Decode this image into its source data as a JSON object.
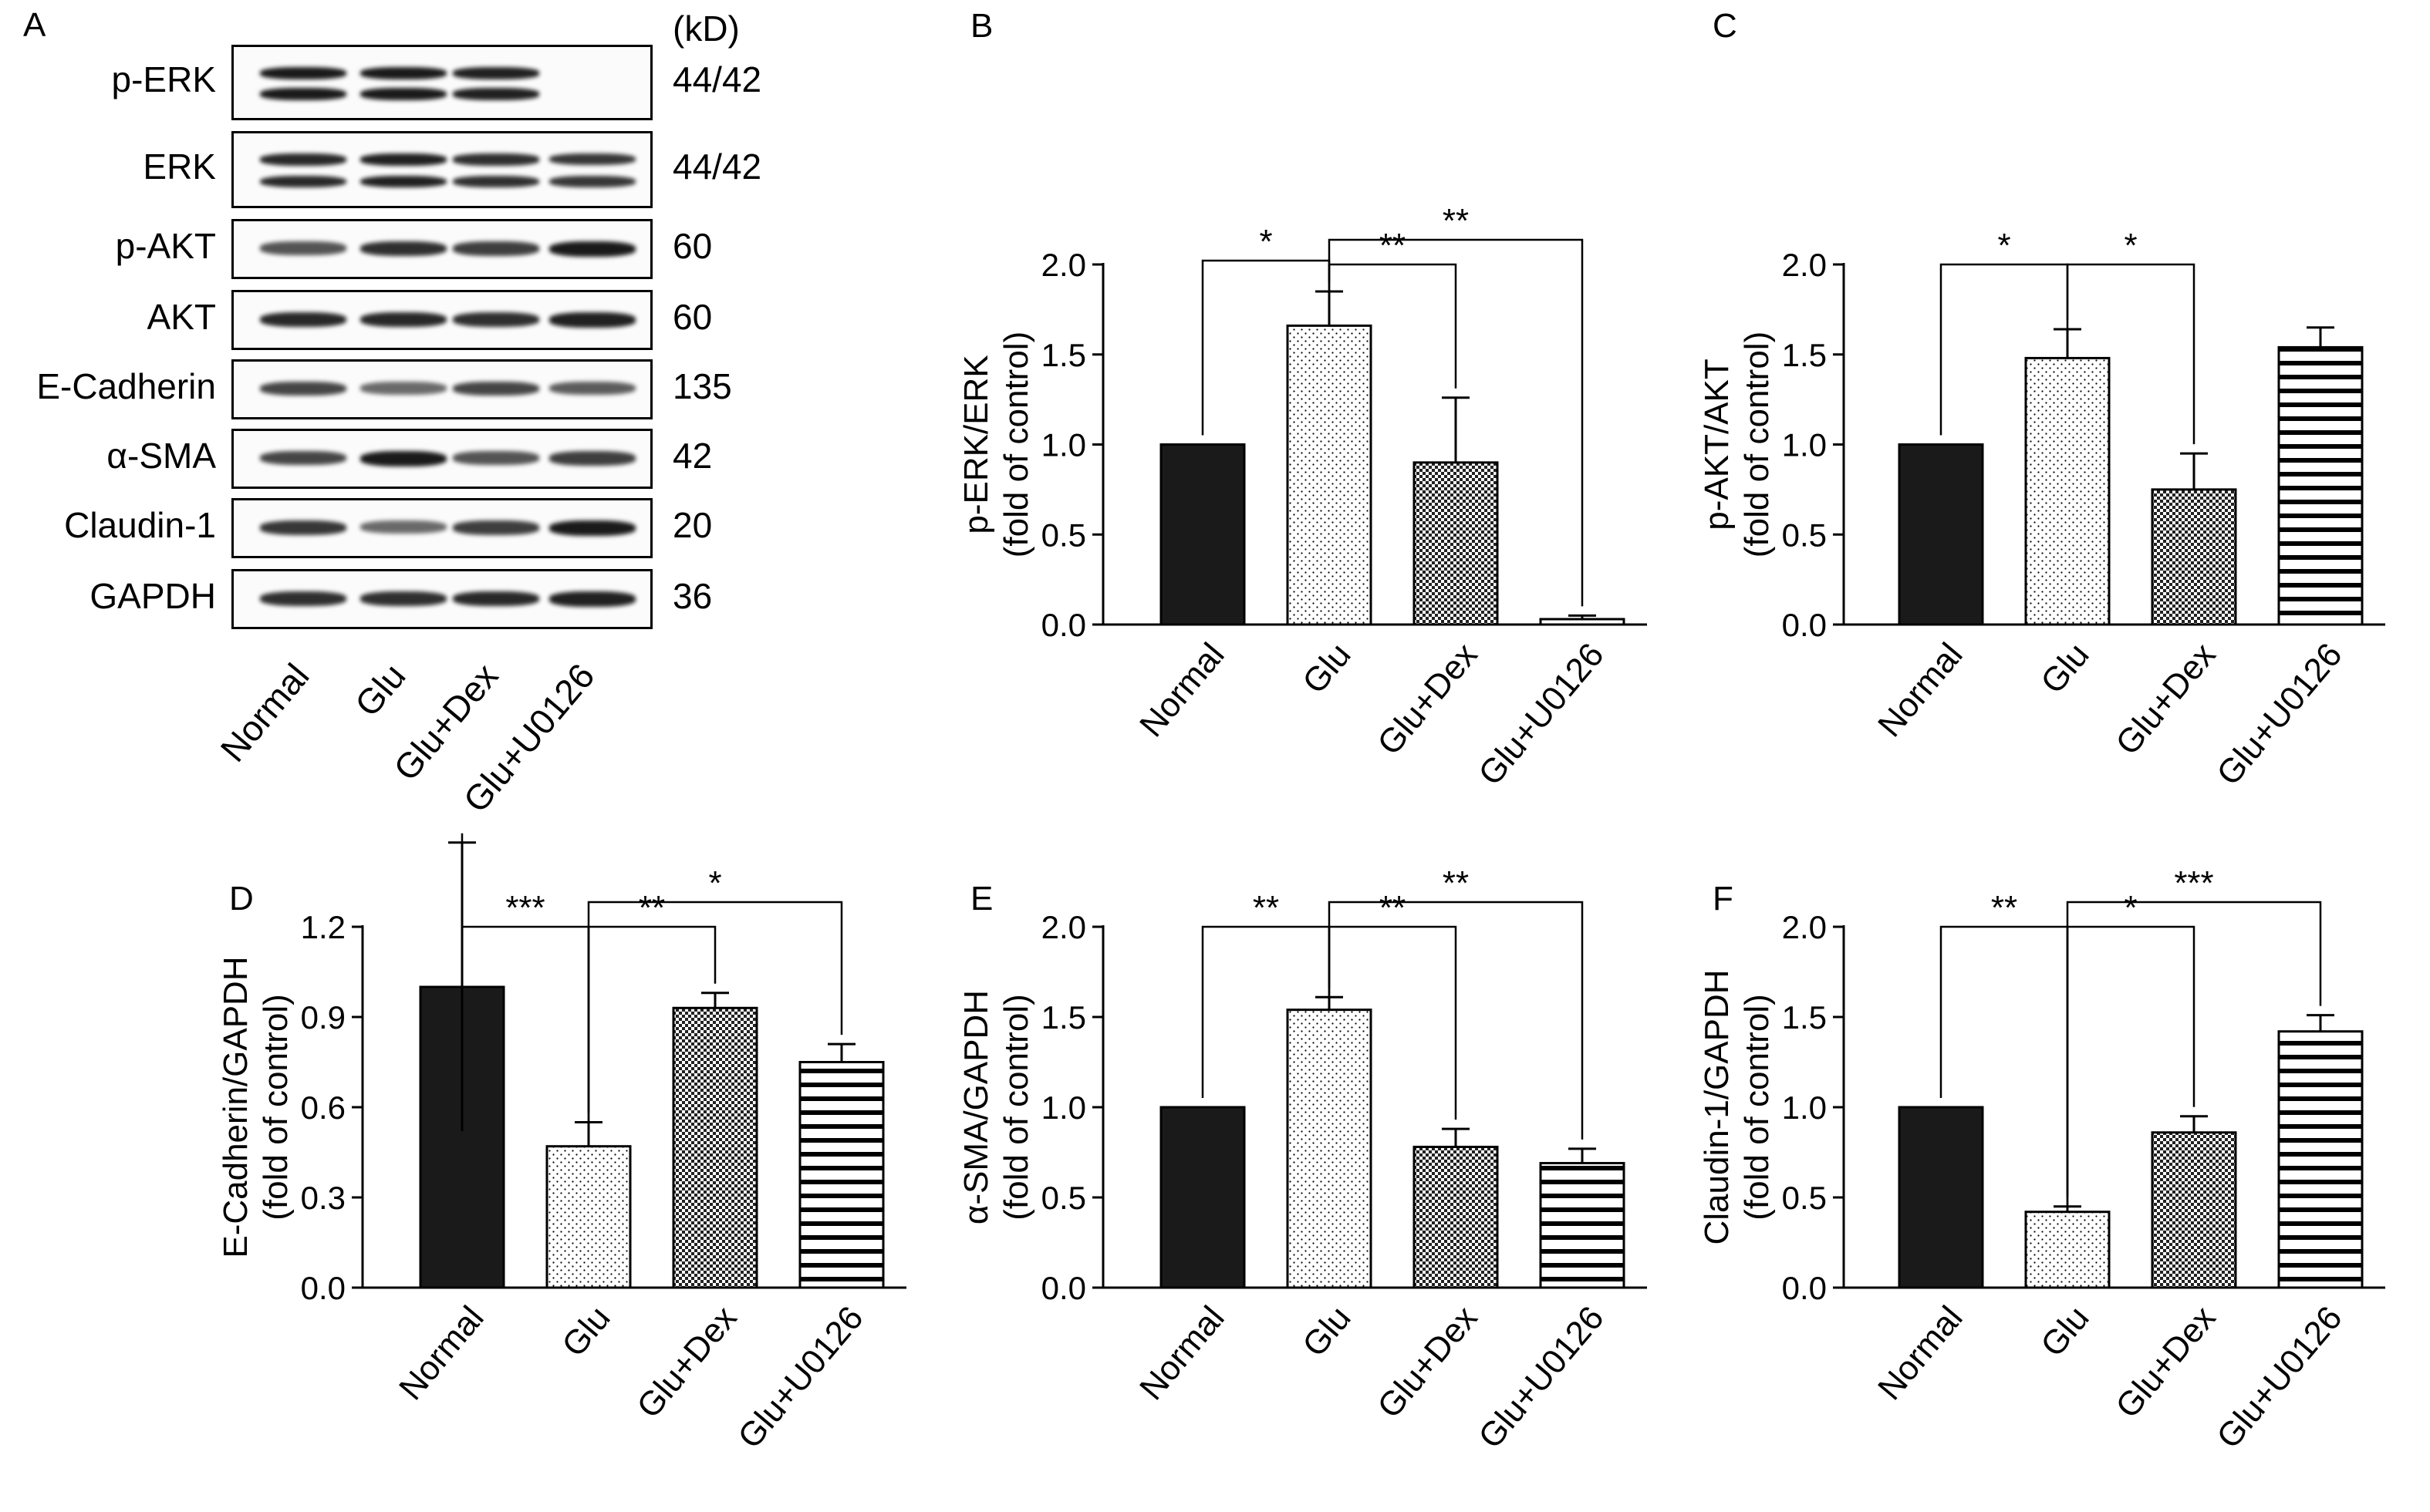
{
  "western_blot": {
    "panel_letter": "A",
    "kd_header": "(kD)",
    "lanes": [
      "Normal",
      "Glu",
      "Glu+Dex",
      "Glu+U0126"
    ],
    "rows": [
      {
        "label": "p-ERK",
        "kd": "44/42"
      },
      {
        "label": "ERK",
        "kd": "44/42"
      },
      {
        "label": "p-AKT",
        "kd": "60"
      },
      {
        "label": "AKT",
        "kd": "60"
      },
      {
        "label": "E-Cadherin",
        "kd": "135"
      },
      {
        "label": "α-SMA",
        "kd": "42"
      },
      {
        "label": "Claudin-1",
        "kd": "20"
      },
      {
        "label": "GAPDH",
        "kd": "36"
      }
    ]
  },
  "chart_data": [
    {
      "panel": "B",
      "type": "bar",
      "categories": [
        "Normal",
        "Glu",
        "Glu+Dex",
        "Glu+U0126"
      ],
      "values": [
        1.0,
        1.66,
        0.9,
        0.03
      ],
      "errors": [
        0,
        0.19,
        0.36,
        0.02
      ],
      "ylabel": [
        "p-ERK/ERK",
        "(fold of control)"
      ],
      "ylim": [
        0,
        2.0
      ],
      "yticks": [
        "0.0",
        "0.5",
        "1.0",
        "1.5",
        "2.0"
      ],
      "significance": [
        {
          "from": 0,
          "to": 1,
          "label": "*"
        },
        {
          "from": 1,
          "to": 2,
          "label": "**"
        },
        {
          "from": 1,
          "to": 3,
          "label": "**"
        }
      ]
    },
    {
      "panel": "C",
      "type": "bar",
      "categories": [
        "Normal",
        "Glu",
        "Glu+Dex",
        "Glu+U0126"
      ],
      "values": [
        1.0,
        1.48,
        0.75,
        1.54
      ],
      "errors": [
        0,
        0.16,
        0.2,
        0.11
      ],
      "ylabel": [
        "p-AKT/AKT",
        "(fold of control)"
      ],
      "ylim": [
        0,
        2.0
      ],
      "yticks": [
        "0.0",
        "0.5",
        "1.0",
        "1.5",
        "2.0"
      ],
      "significance": [
        {
          "from": 0,
          "to": 1,
          "label": "*"
        },
        {
          "from": 1,
          "to": 2,
          "label": "*"
        }
      ]
    },
    {
      "panel": "D",
      "type": "bar",
      "categories": [
        "Normal",
        "Glu",
        "Glu+Dex",
        "Glu+U0126"
      ],
      "values": [
        1.0,
        0.47,
        0.93,
        0.75
      ],
      "errors": [
        0.48,
        0.08,
        0.05,
        0.06
      ],
      "ylabel": [
        "E-Cadherin/GAPDH",
        "(fold of control)"
      ],
      "ylim": [
        0,
        1.2
      ],
      "yticks": [
        "0.0",
        "0.3",
        "0.6",
        "0.9",
        "1.2"
      ],
      "significance": [
        {
          "from": 0,
          "to": 1,
          "label": "***"
        },
        {
          "from": 1,
          "to": 2,
          "label": "**"
        },
        {
          "from": 1,
          "to": 3,
          "label": "*"
        }
      ]
    },
    {
      "panel": "E",
      "type": "bar",
      "categories": [
        "Normal",
        "Glu",
        "Glu+Dex",
        "Glu+U0126"
      ],
      "values": [
        1.0,
        1.54,
        0.78,
        0.69
      ],
      "errors": [
        0,
        0.07,
        0.1,
        0.08
      ],
      "ylabel": [
        "α-SMA/GAPDH",
        "(fold of control)"
      ],
      "ylim": [
        0,
        2.0
      ],
      "yticks": [
        "0.0",
        "0.5",
        "1.0",
        "1.5",
        "2.0"
      ],
      "significance": [
        {
          "from": 0,
          "to": 1,
          "label": "**"
        },
        {
          "from": 1,
          "to": 2,
          "label": "**"
        },
        {
          "from": 1,
          "to": 3,
          "label": "**"
        }
      ]
    },
    {
      "panel": "F",
      "type": "bar",
      "categories": [
        "Normal",
        "Glu",
        "Glu+Dex",
        "Glu+U0126"
      ],
      "values": [
        1.0,
        0.42,
        0.86,
        1.42
      ],
      "errors": [
        0,
        0.03,
        0.09,
        0.09
      ],
      "ylabel": [
        "Claudin-1/GAPDH",
        "(fold of control)"
      ],
      "ylim": [
        0,
        2.0
      ],
      "yticks": [
        "0.0",
        "0.5",
        "1.0",
        "1.5",
        "2.0"
      ],
      "significance": [
        {
          "from": 0,
          "to": 1,
          "label": "**"
        },
        {
          "from": 1,
          "to": 2,
          "label": "*"
        },
        {
          "from": 1,
          "to": 3,
          "label": "***"
        }
      ]
    }
  ],
  "colors": {
    "normal_fill": "#1a1a1a",
    "pattern_stroke": "#000000",
    "background": "#ffffff"
  }
}
